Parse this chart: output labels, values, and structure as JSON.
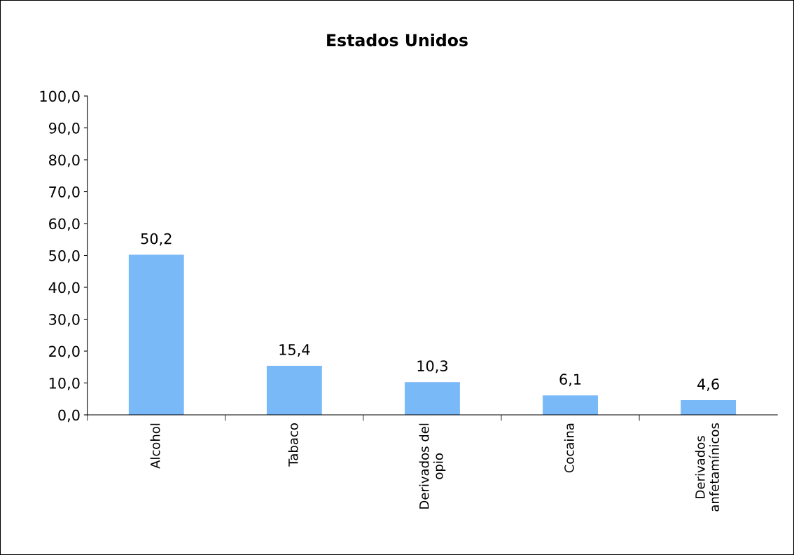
{
  "chart_data": {
    "type": "bar",
    "title": "Estados Unidos",
    "categories": [
      "Alcohol",
      "Tabaco",
      "Derivados del\nopio",
      "Cocaina",
      "Derivados\nanfetamínicos"
    ],
    "values": [
      50.2,
      15.4,
      10.3,
      6.1,
      4.6
    ],
    "value_labels": [
      "50,2",
      "15,4",
      "10,3",
      "6,1",
      "4,6"
    ],
    "color": "#7ab9f8",
    "ylim": [
      0,
      100
    ],
    "yticks": [
      {
        "value": 0,
        "label": "0,0"
      },
      {
        "value": 10,
        "label": "10,0"
      },
      {
        "value": 20,
        "label": "20,0"
      },
      {
        "value": 30,
        "label": "30,0"
      },
      {
        "value": 40,
        "label": "40,0"
      },
      {
        "value": 50,
        "label": "50,0"
      },
      {
        "value": 60,
        "label": "60,0"
      },
      {
        "value": 70,
        "label": "70,0"
      },
      {
        "value": 80,
        "label": "80,0"
      },
      {
        "value": 90,
        "label": "90,0"
      },
      {
        "value": 100,
        "label": "100,0"
      }
    ],
    "grid": false,
    "legend": false
  }
}
